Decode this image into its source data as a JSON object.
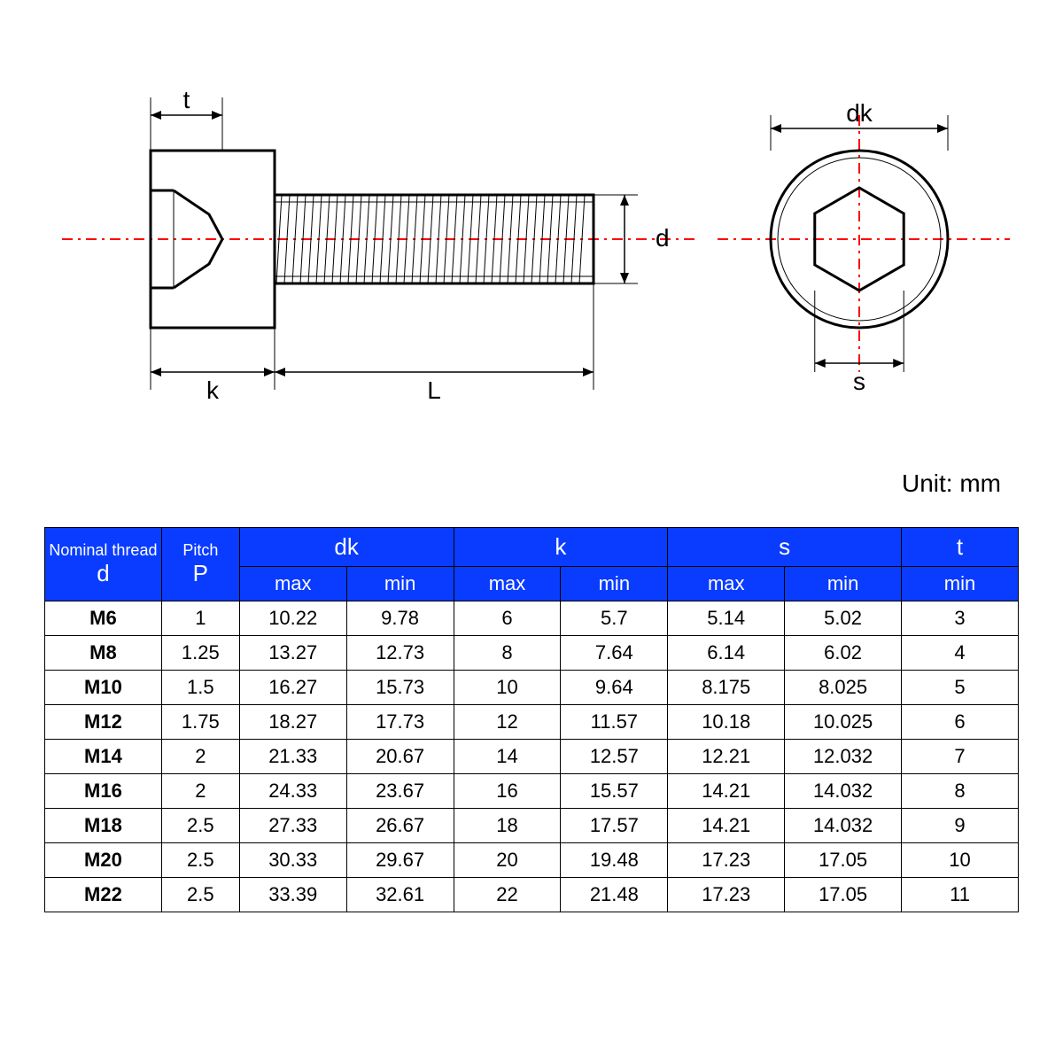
{
  "diagram": {
    "labels": {
      "t": "t",
      "k": "k",
      "L": "L",
      "d": "d",
      "dk": "dk",
      "s": "s"
    },
    "colors": {
      "stroke": "#000000",
      "centerline": "#ff0000",
      "fill": "#ffffff"
    },
    "line_widths": {
      "outline": 3,
      "thin": 1.5,
      "dim": 1.5
    },
    "centerline_dash": "12 6 3 6"
  },
  "unit_label": "Unit: mm",
  "table": {
    "header_bg": "#0a3cff",
    "header_fg": "#ffffff",
    "groups": [
      {
        "line1": "Nominal thread",
        "line2": "d",
        "span": 1
      },
      {
        "line1": "Pitch",
        "line2": "P",
        "span": 1
      },
      {
        "line1": "",
        "line2": "dk",
        "span": 2
      },
      {
        "line1": "",
        "line2": "k",
        "span": 2
      },
      {
        "line1": "",
        "line2": "s",
        "span": 2
      },
      {
        "line1": "",
        "line2": "t",
        "span": 1
      }
    ],
    "subheaders": [
      "max",
      "min",
      "max",
      "min",
      "max",
      "min",
      "min"
    ],
    "col_widths_pct": [
      12,
      8,
      11,
      11,
      11,
      11,
      12,
      12,
      12
    ],
    "rows": [
      [
        "M6",
        "1",
        "10.22",
        "9.78",
        "6",
        "5.7",
        "5.14",
        "5.02",
        "3"
      ],
      [
        "M8",
        "1.25",
        "13.27",
        "12.73",
        "8",
        "7.64",
        "6.14",
        "6.02",
        "4"
      ],
      [
        "M10",
        "1.5",
        "16.27",
        "15.73",
        "10",
        "9.64",
        "8.175",
        "8.025",
        "5"
      ],
      [
        "M12",
        "1.75",
        "18.27",
        "17.73",
        "12",
        "11.57",
        "10.18",
        "10.025",
        "6"
      ],
      [
        "M14",
        "2",
        "21.33",
        "20.67",
        "14",
        "12.57",
        "12.21",
        "12.032",
        "7"
      ],
      [
        "M16",
        "2",
        "24.33",
        "23.67",
        "16",
        "15.57",
        "14.21",
        "14.032",
        "8"
      ],
      [
        "M18",
        "2.5",
        "27.33",
        "26.67",
        "18",
        "17.57",
        "14.21",
        "14.032",
        "9"
      ],
      [
        "M20",
        "2.5",
        "30.33",
        "29.67",
        "20",
        "19.48",
        "17.23",
        "17.05",
        "10"
      ],
      [
        "M22",
        "2.5",
        "33.39",
        "32.61",
        "22",
        "21.48",
        "17.23",
        "17.05",
        "11"
      ]
    ]
  }
}
